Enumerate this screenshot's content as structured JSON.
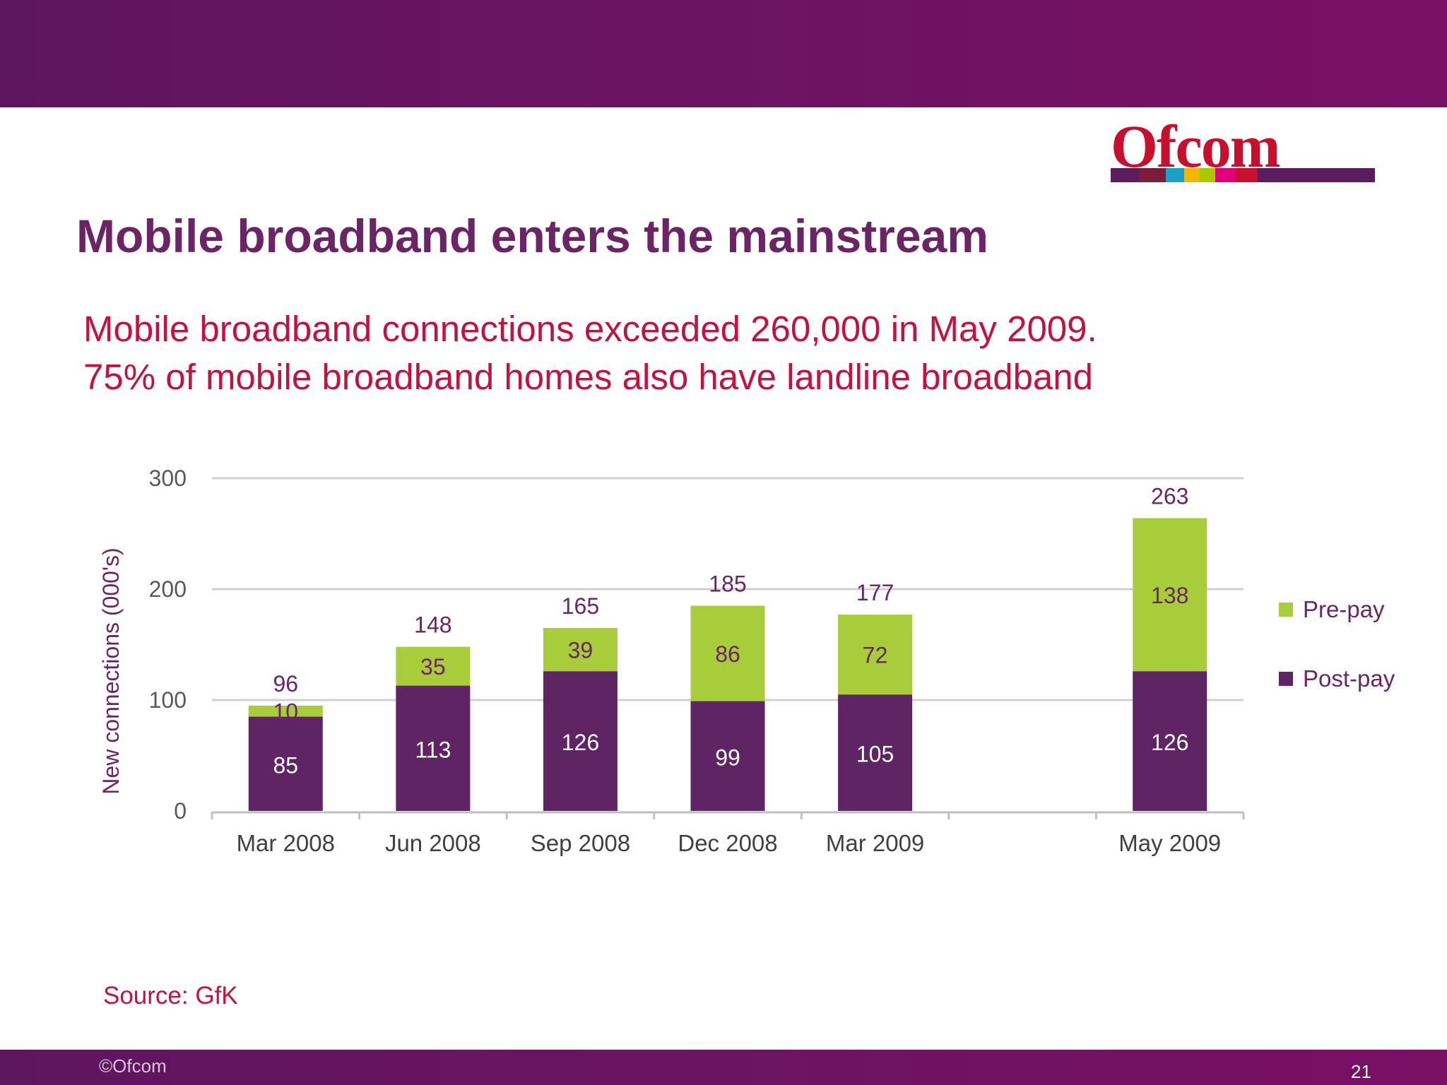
{
  "slide": {
    "title": "Mobile broadband enters the mainstream",
    "subtitle_lines": [
      "Mobile broadband connections exceeded 260,000 in May 2009.",
      "75% of mobile broadband homes also have landline broadband"
    ],
    "source": "Source: GfK",
    "footer_copyright": "©Ofcom",
    "page_number": "21"
  },
  "logo": {
    "text": "Ofcom",
    "color": "#c8102e",
    "stripe_colors": [
      "#5b1d5e",
      "#7a1c3a",
      "#1aa0c8",
      "#f0b800",
      "#a8c800",
      "#e0007a",
      "#c8102e",
      "#5b1d5e"
    ]
  },
  "colors": {
    "band": "#6c1462",
    "title": "#6b2566",
    "accent_text": "#c8103e",
    "post_pay": "#5f2464",
    "pre_pay": "#a8cd3a"
  },
  "chart_data": {
    "type": "bar",
    "stacked": true,
    "categories": [
      "Mar 2008",
      "Jun 2008",
      "Sep 2008",
      "Dec 2008",
      "Mar 2009",
      "",
      "May 2009"
    ],
    "series": [
      {
        "name": "Post-pay",
        "values": [
          85,
          113,
          126,
          99,
          105,
          null,
          126
        ]
      },
      {
        "name": "Pre-pay",
        "values": [
          10,
          35,
          39,
          86,
          72,
          null,
          138
        ]
      }
    ],
    "totals": [
      96,
      148,
      165,
      185,
      177,
      null,
      263
    ],
    "ylabel": "New connections  (000's)",
    "ylim": [
      0,
      300
    ],
    "yticks": [
      0,
      100,
      200,
      300
    ],
    "grid": true,
    "legend_position": "right",
    "legend_order": [
      "Pre-pay",
      "Post-pay"
    ]
  }
}
